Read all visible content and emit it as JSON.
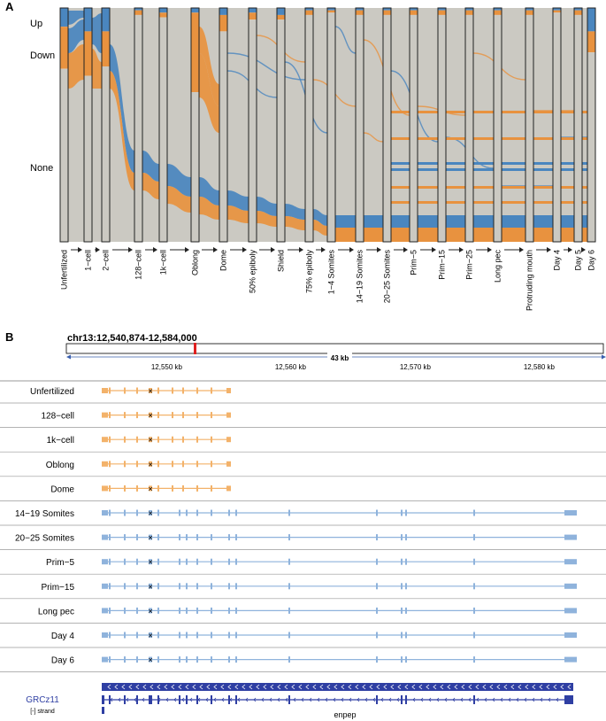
{
  "panel_a": {
    "label": "A",
    "row_labels": [
      "Up",
      "Down",
      "None"
    ],
    "stages": [
      "Unfertilized",
      "1−cell",
      "2−cell",
      "128−cell",
      "1k−cell",
      "Oblong",
      "Dome",
      "50% epiboly",
      "Shield",
      "75% epiboly",
      "1−4 Somites",
      "14−19 Somites",
      "20−25 Somites",
      "Prim−5",
      "Prim−15",
      "Prim−25",
      "Long pec",
      "Protruding mouth",
      "Day 4",
      "Day 5",
      "Day 6"
    ],
    "colors": {
      "up": "#4a86bf",
      "down": "#e8923f",
      "none": "#cbc9c2"
    }
  },
  "panel_b": {
    "label": "B",
    "locus": "chr13:12,540,874-12,584,000",
    "span_label": "43 kb",
    "axis_ticks": [
      "12,550 kb",
      "12,560 kb",
      "12,570 kb",
      "12,580 kb"
    ],
    "tracks": [
      {
        "name": "Unfertilized",
        "model": "short"
      },
      {
        "name": "128−cell",
        "model": "short"
      },
      {
        "name": "1k−cell",
        "model": "short"
      },
      {
        "name": "Oblong",
        "model": "short"
      },
      {
        "name": "Dome",
        "model": "short"
      },
      {
        "name": "14−19 Somites",
        "model": "long"
      },
      {
        "name": "20−25 Somites",
        "model": "long"
      },
      {
        "name": "Prim−5",
        "model": "long"
      },
      {
        "name": "Prim−15",
        "model": "long"
      },
      {
        "name": "Long pec",
        "model": "long"
      },
      {
        "name": "Day 4",
        "model": "long"
      },
      {
        "name": "Day 6",
        "model": "long"
      }
    ],
    "genome": "GRCz11",
    "strand": "[-] strand",
    "gene": "enpep",
    "colors": {
      "short": "#f3b26a",
      "long": "#8fb3dc",
      "gene": "#2f3fa3",
      "locator": "#e02020"
    }
  }
}
